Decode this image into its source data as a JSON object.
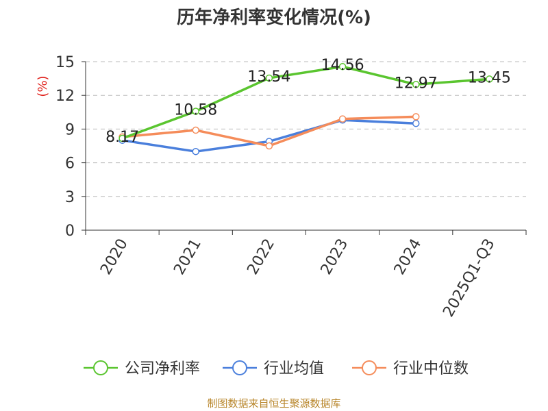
{
  "chart_data": {
    "type": "line",
    "title": "历年净利率变化情况(%)",
    "ylabel": "(%)",
    "xlabel": "",
    "categories": [
      "2020",
      "2021",
      "2022",
      "2023",
      "2024",
      "2025Q1-Q3"
    ],
    "ylim": [
      0,
      15
    ],
    "yticks": [
      "0",
      "3",
      "6",
      "9",
      "12",
      "15"
    ],
    "grid": true,
    "legend_position": "bottom",
    "series": [
      {
        "name": "公司净利率",
        "color": "#5ac52f",
        "values": [
          8.17,
          10.58,
          13.54,
          14.56,
          12.97,
          13.45
        ],
        "labels": [
          "8.17",
          "10.58",
          "13.54",
          "14.56",
          "12.97",
          "13.45"
        ]
      },
      {
        "name": "行业均值",
        "color": "#4a7fdc",
        "values": [
          8.0,
          7.0,
          7.9,
          9.8,
          9.5,
          null
        ]
      },
      {
        "name": "行业中位数",
        "color": "#f58c5a",
        "values": [
          8.3,
          8.9,
          7.5,
          9.9,
          10.1,
          null
        ]
      }
    ],
    "source": "制图数据来自恒生聚源数据库"
  }
}
